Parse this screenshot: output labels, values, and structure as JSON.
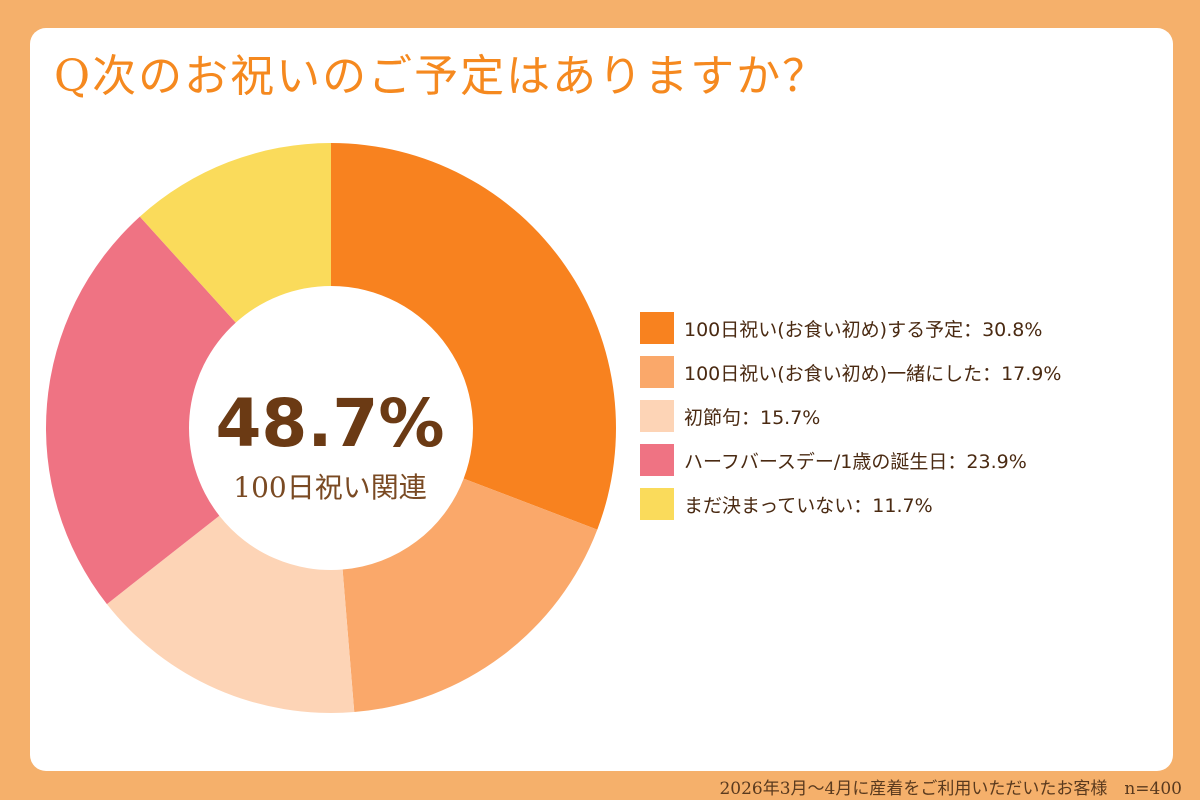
{
  "title": "Q次のお祝いのご予定はありますか？",
  "center": {
    "value": "48.7%",
    "label": "100日祝い関連"
  },
  "footer": "2026年3月～4月に産着をご利用いただいたお客様　n=400",
  "chart_data": {
    "type": "pie",
    "donut": true,
    "title": "Q次のお祝いのご予定はありますか？",
    "legend_position": "right",
    "slices": [
      {
        "label": "100日祝い(お食い初め)する予定：30.8%",
        "value": 30.8,
        "color": "#F8821F"
      },
      {
        "label": "100日祝い(お食い初め)一緒にした：17.9%",
        "value": 17.9,
        "color": "#FAA86A"
      },
      {
        "label": "初節句：15.7%",
        "value": 15.7,
        "color": "#FDD4B6"
      },
      {
        "label": "ハーフバースデー/1歳の誕生日：23.9%",
        "value": 23.9,
        "color": "#EF7383"
      },
      {
        "label": "まだ決まっていない：11.7%",
        "value": 11.7,
        "color": "#FADB5B"
      }
    ]
  }
}
